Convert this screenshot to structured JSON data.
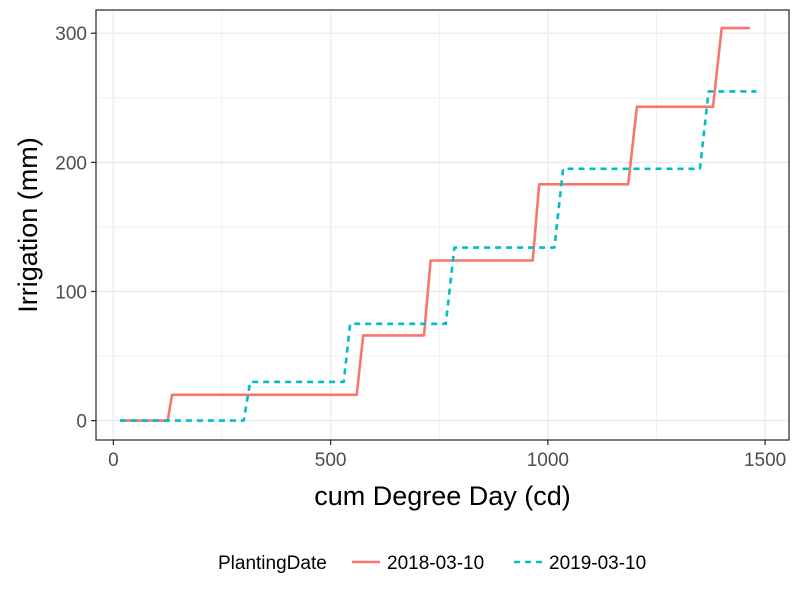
{
  "chart_data": {
    "type": "line",
    "xlabel": "cum Degree Day (cd)",
    "ylabel": "Irrigation (mm)",
    "xlim": [
      -40,
      1555
    ],
    "ylim": [
      -15,
      318
    ],
    "x_ticks": [
      0,
      500,
      1000,
      1500
    ],
    "y_ticks": [
      0,
      100,
      200,
      300
    ],
    "x_tick_labels": [
      "0",
      "500",
      "1000",
      "1500"
    ],
    "y_tick_labels": [
      "0",
      "100",
      "200",
      "300"
    ],
    "grid": true,
    "legend": {
      "title": "PlantingDate",
      "position": "bottom"
    },
    "series": [
      {
        "name": "2018-03-10",
        "color": "#F8766D",
        "dash": "solid",
        "points": [
          [
            15,
            0
          ],
          [
            125,
            0
          ],
          [
            135,
            20
          ],
          [
            560,
            20
          ],
          [
            575,
            66
          ],
          [
            715,
            66
          ],
          [
            730,
            124
          ],
          [
            965,
            124
          ],
          [
            980,
            183
          ],
          [
            1185,
            183
          ],
          [
            1205,
            243
          ],
          [
            1380,
            243
          ],
          [
            1400,
            304
          ],
          [
            1465,
            304
          ]
        ]
      },
      {
        "name": "2019-03-10",
        "color": "#00BFC4",
        "dash": "dashed",
        "points": [
          [
            15,
            0
          ],
          [
            300,
            0
          ],
          [
            315,
            30
          ],
          [
            530,
            30
          ],
          [
            545,
            75
          ],
          [
            765,
            75
          ],
          [
            785,
            134
          ],
          [
            1015,
            134
          ],
          [
            1035,
            195
          ],
          [
            1350,
            195
          ],
          [
            1370,
            255
          ],
          [
            1480,
            255
          ]
        ]
      }
    ]
  }
}
